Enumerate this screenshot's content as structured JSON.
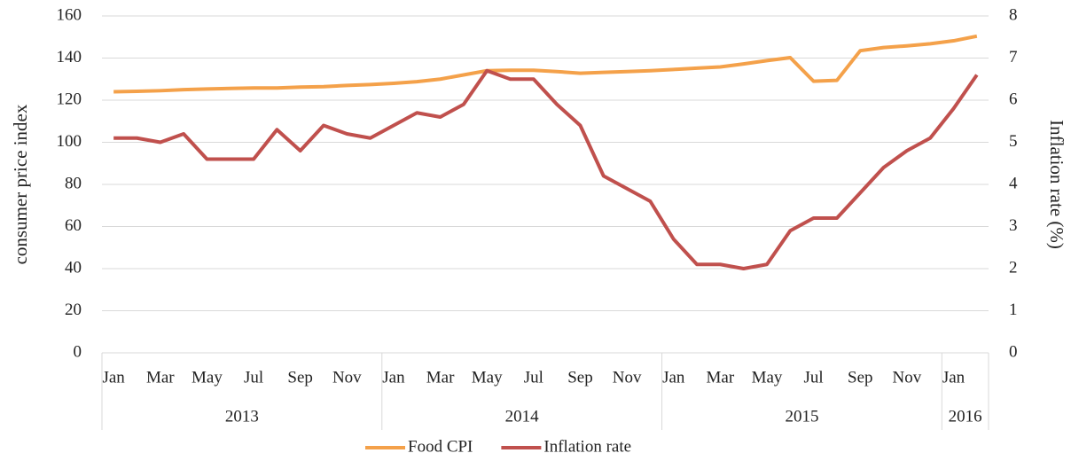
{
  "chart_data": {
    "type": "line",
    "y_label": "consumer price index",
    "y2_label": "Inflation rate (%)",
    "categories": [
      "Jan",
      null,
      "Mar",
      null,
      "May",
      null,
      "Jul",
      null,
      "Sep",
      null,
      "Nov",
      null,
      "Jan",
      null,
      "Mar",
      null,
      "May",
      null,
      "Jul",
      null,
      "Sep",
      null,
      "Nov",
      null,
      "Jan",
      null,
      "Mar",
      null,
      "May",
      null,
      "Jul",
      null,
      "Sep",
      null,
      "Nov",
      null,
      "Jan",
      null
    ],
    "years": [
      "2013",
      "2014",
      "2015",
      "2016"
    ],
    "series": [
      {
        "name": "Food CPI",
        "color": "#f4a14a",
        "values": [
          124,
          124.2,
          124.5,
          125,
          125.3,
          125.6,
          125.8,
          125.8,
          126.2,
          126.4,
          127,
          127.4,
          128,
          128.8,
          130,
          132,
          134,
          134.2,
          134.2,
          133.6,
          132.8,
          133.2,
          133.6,
          134,
          134.6,
          135.2,
          135.8,
          137.2,
          138.8,
          140.2,
          129,
          129.4,
          143.5,
          145,
          145.8,
          146.8,
          148.2,
          150.4
        ]
      },
      {
        "name": "Inflation rate",
        "color": "#c0504d",
        "axis": "y2",
        "values": [
          5.1,
          5.1,
          5.0,
          5.2,
          4.6,
          4.6,
          4.6,
          5.3,
          4.8,
          5.4,
          5.2,
          5.1,
          5.4,
          5.7,
          5.6,
          5.9,
          6.7,
          6.5,
          6.5,
          5.9,
          5.4,
          4.2,
          3.9,
          3.6,
          2.7,
          2.1,
          2.1,
          2.0,
          2.1,
          2.9,
          3.2,
          3.2,
          3.8,
          4.4,
          4.8,
          5.1,
          5.8,
          6.6
        ]
      }
    ],
    "ylim": [
      0,
      160
    ],
    "yticks": [
      0,
      20,
      40,
      60,
      80,
      100,
      120,
      140,
      160
    ],
    "y2lim": [
      0,
      8
    ],
    "y2ticks": [
      0,
      1,
      2,
      3,
      4,
      5,
      6,
      7,
      8
    ],
    "grid": true
  }
}
